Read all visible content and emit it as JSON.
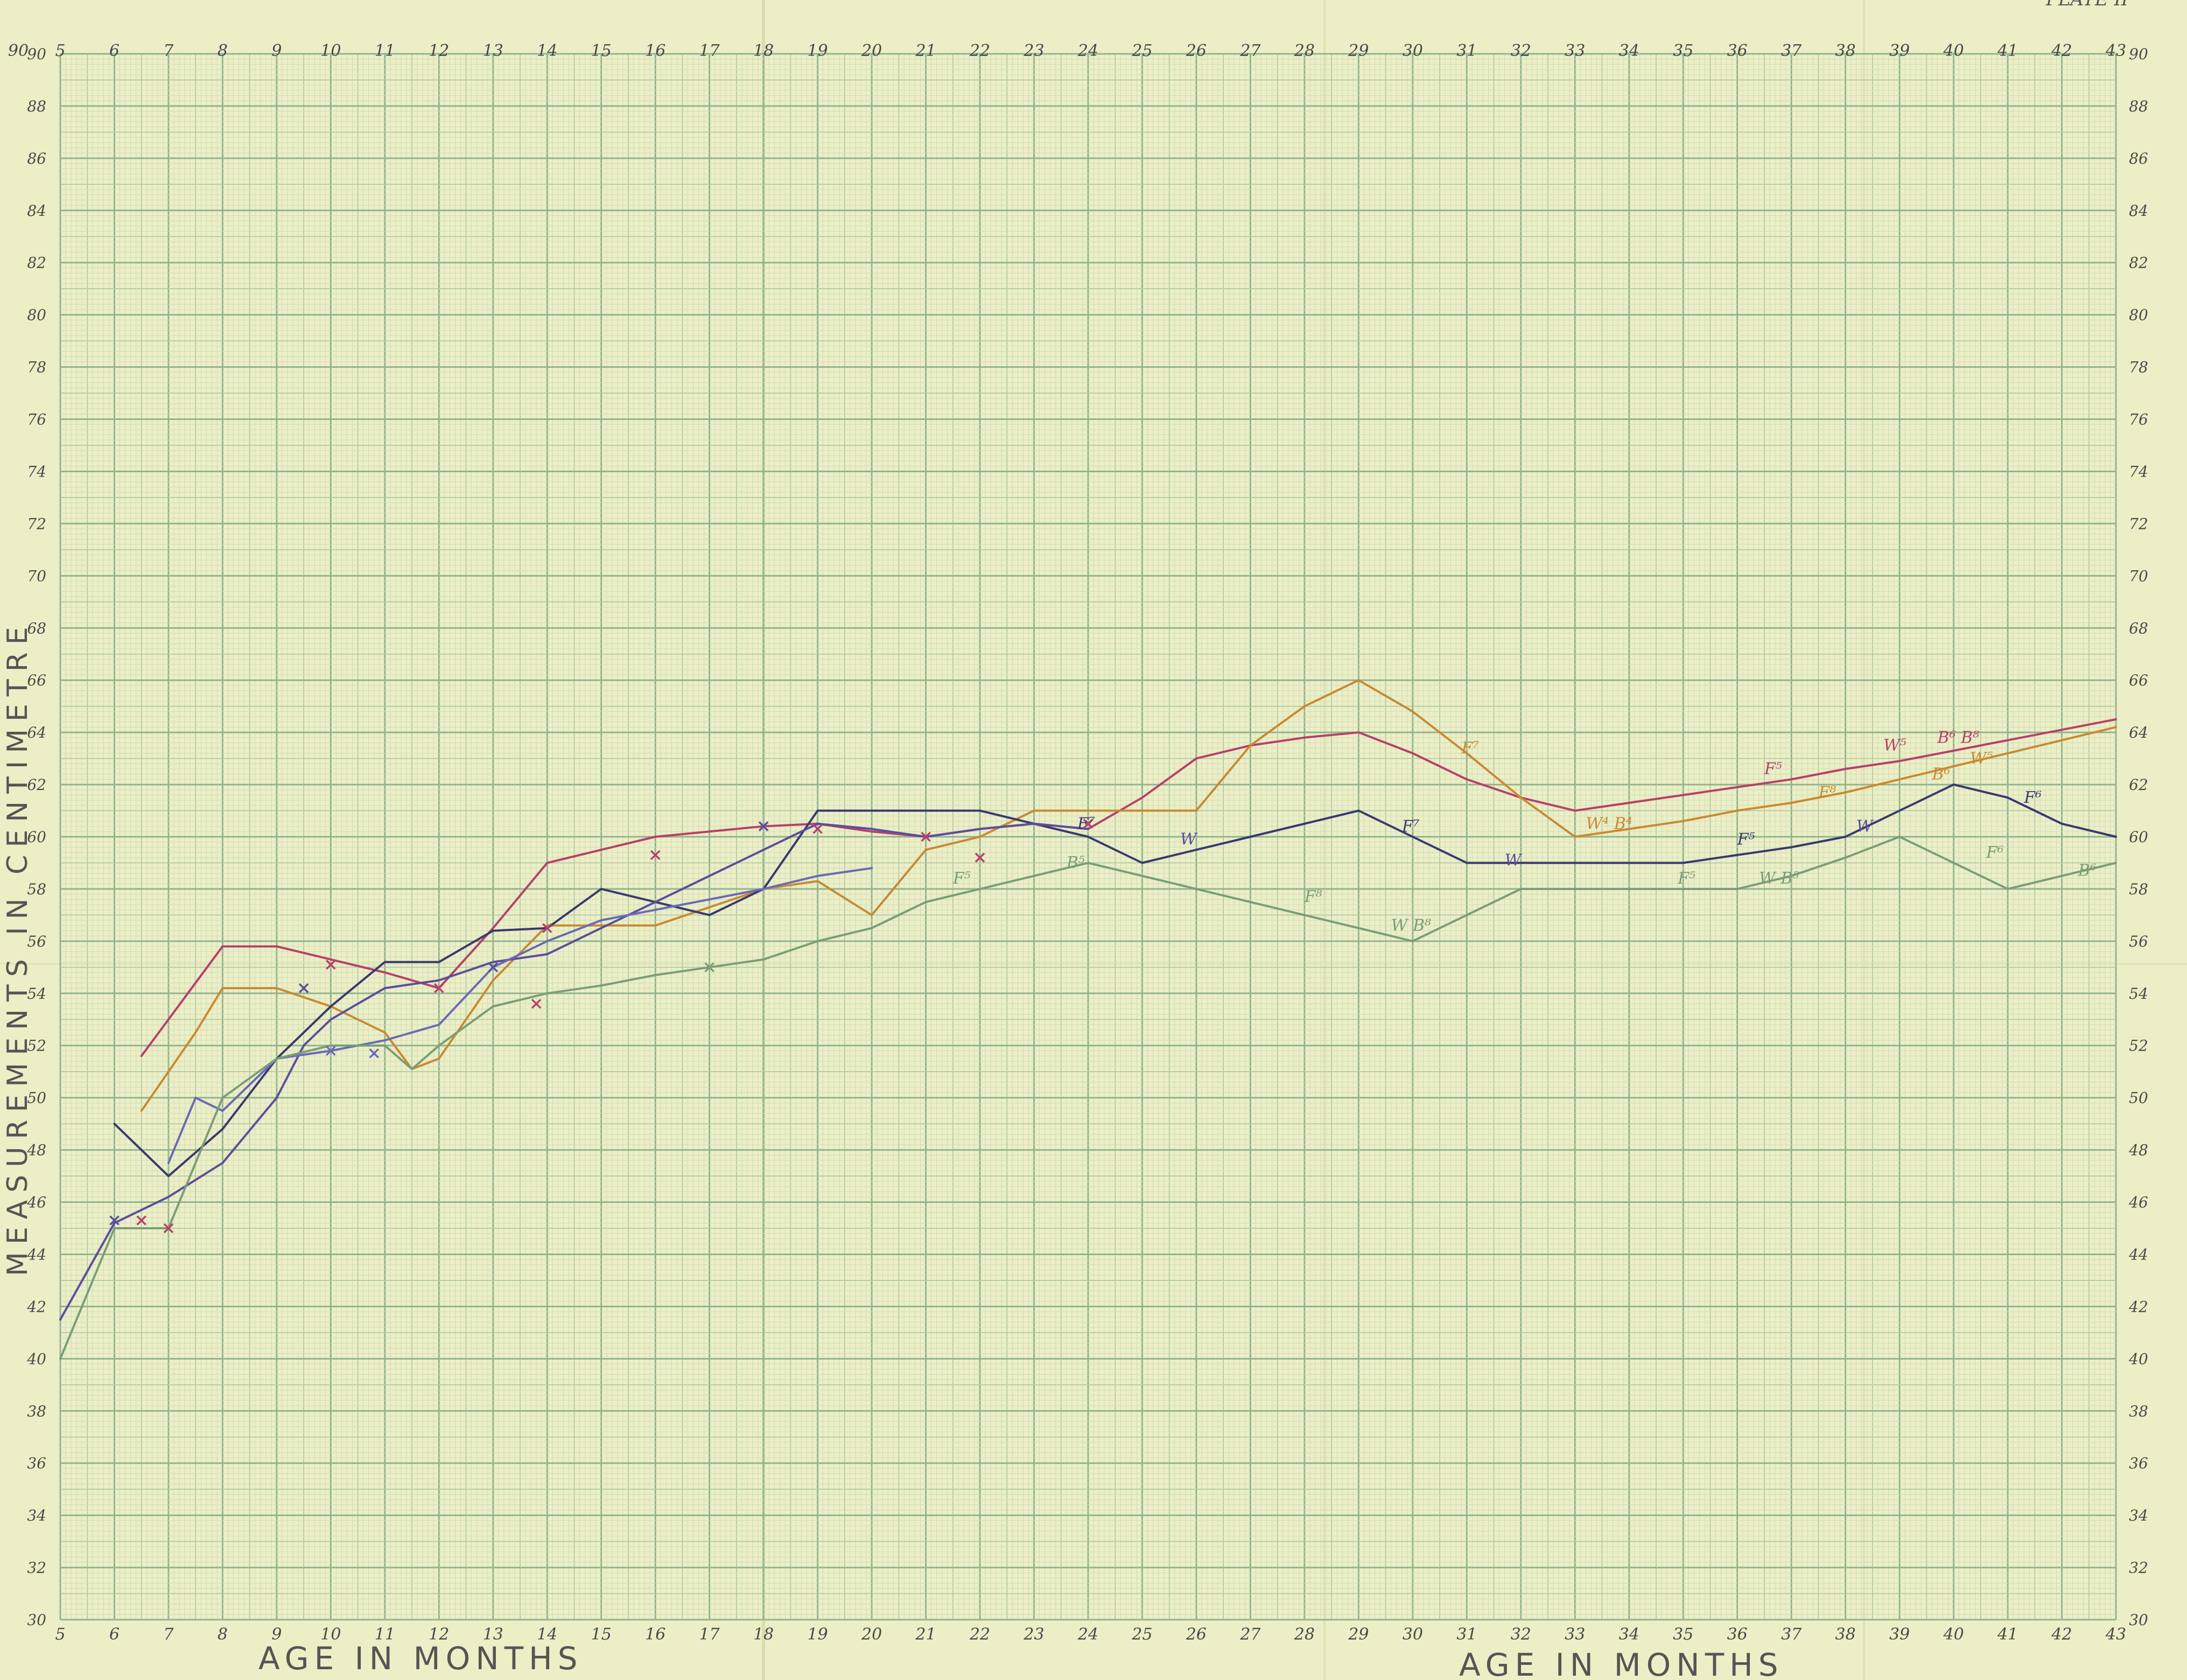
{
  "plate_label": "PLATE II",
  "chart_data": {
    "type": "line",
    "title": "",
    "xlabel": "AGE IN MONTHS",
    "ylabel": "MEASUREMENTS IN CENTIMETRE",
    "xlim": [
      5,
      43
    ],
    "ylim": [
      30,
      90
    ],
    "x_ticks_top": [
      5,
      6,
      7,
      8,
      9,
      10,
      11,
      12,
      13,
      14,
      15,
      16,
      17,
      18,
      19,
      20,
      21,
      22,
      23,
      24,
      25,
      26,
      27,
      28,
      29,
      30,
      31,
      32,
      33,
      34,
      35,
      36,
      37,
      38,
      39,
      40,
      41,
      42,
      43
    ],
    "x_ticks_bottom": [
      5,
      6,
      7,
      8,
      9,
      10,
      11,
      12,
      13,
      14,
      15,
      16,
      17,
      18,
      19,
      20,
      21,
      22,
      23,
      24,
      25,
      26,
      27,
      28,
      29,
      30,
      31,
      32,
      33,
      34,
      35,
      36,
      37,
      38,
      39,
      40,
      41,
      42,
      43
    ],
    "y_ticks": [
      30,
      32,
      34,
      36,
      38,
      40,
      42,
      44,
      46,
      48,
      50,
      52,
      54,
      56,
      58,
      60,
      62,
      64,
      66,
      68,
      70,
      72,
      74,
      76,
      78,
      80,
      82,
      84,
      86,
      88,
      90
    ],
    "grid": true,
    "legend": "none",
    "series": [
      {
        "name": "",
        "color": "#b8406a",
        "points": [
          [
            6.5,
            51.6
          ],
          [
            8,
            55.8
          ],
          [
            9,
            55.8
          ],
          [
            10,
            55.3
          ],
          [
            11,
            54.8
          ],
          [
            12,
            54.2
          ],
          [
            13,
            56.5
          ],
          [
            14,
            59
          ],
          [
            15,
            59.5
          ],
          [
            16,
            60
          ],
          [
            17,
            60.2
          ],
          [
            18,
            60.4
          ],
          [
            19,
            60.5
          ],
          [
            20,
            60.2
          ],
          [
            21,
            60
          ],
          [
            22,
            60.3
          ],
          [
            23,
            60.5
          ],
          [
            24,
            60.3
          ],
          [
            25,
            61.5
          ],
          [
            26,
            63
          ],
          [
            27,
            63.5
          ],
          [
            28,
            63.8
          ],
          [
            29,
            64
          ],
          [
            30,
            63.2
          ],
          [
            31,
            62.2
          ],
          [
            32,
            61.5
          ],
          [
            33,
            61
          ],
          [
            34,
            61.3
          ],
          [
            35,
            61.6
          ],
          [
            36,
            61.9
          ],
          [
            37,
            62.2
          ],
          [
            38,
            62.6
          ],
          [
            39,
            62.9
          ],
          [
            40,
            63.3
          ],
          [
            41,
            63.7
          ],
          [
            42,
            64.1
          ],
          [
            43,
            64.5
          ]
        ],
        "markers": [
          [
            6.5,
            45.3
          ],
          [
            7,
            45
          ],
          [
            10,
            55.1
          ],
          [
            12,
            54.2
          ],
          [
            13.8,
            53.6
          ],
          [
            14,
            56.5
          ],
          [
            16,
            59.3
          ],
          [
            19,
            60.3
          ],
          [
            21,
            60
          ],
          [
            22,
            59.2
          ],
          [
            24,
            60.5
          ]
        ],
        "annotations": [
          {
            "text": "F⁵",
            "x": 36.5,
            "y": 62.4
          },
          {
            "text": "W⁵",
            "x": 38.7,
            "y": 63.3
          },
          {
            "text": "B⁶ B⁸",
            "x": 39.7,
            "y": 63.6
          }
        ]
      },
      {
        "name": "",
        "color": "#c98a32",
        "points": [
          [
            6.5,
            49.5
          ],
          [
            7.5,
            52.5
          ],
          [
            8,
            54.2
          ],
          [
            9,
            54.2
          ],
          [
            10,
            53.5
          ],
          [
            11,
            52.5
          ],
          [
            11.5,
            51.1
          ],
          [
            12,
            51.5
          ],
          [
            13,
            54.5
          ],
          [
            14,
            56.6
          ],
          [
            15,
            56.6
          ],
          [
            16,
            56.6
          ],
          [
            17,
            57.3
          ],
          [
            18,
            58
          ],
          [
            19,
            58.3
          ],
          [
            20,
            57
          ],
          [
            21,
            59.5
          ],
          [
            22,
            60
          ],
          [
            23,
            61
          ],
          [
            24,
            61
          ],
          [
            25,
            61
          ],
          [
            26,
            61
          ],
          [
            27,
            63.5
          ],
          [
            28,
            65
          ],
          [
            29,
            66
          ],
          [
            30,
            64.8
          ],
          [
            31,
            63.2
          ],
          [
            32,
            61.5
          ],
          [
            33,
            60
          ],
          [
            34,
            60.3
          ],
          [
            35,
            60.6
          ],
          [
            36,
            61
          ],
          [
            37,
            61.3
          ],
          [
            38,
            61.7
          ],
          [
            39,
            62.2
          ],
          [
            40,
            62.7
          ],
          [
            41,
            63.2
          ],
          [
            42,
            63.7
          ],
          [
            43,
            64.2
          ]
        ],
        "markers": [],
        "annotations": [
          {
            "text": "F⁷",
            "x": 30.9,
            "y": 63.2
          },
          {
            "text": "W⁴ B⁴",
            "x": 33.2,
            "y": 60.3
          },
          {
            "text": "F⁸",
            "x": 37.5,
            "y": 61.5
          },
          {
            "text": "B⁶",
            "x": 39.6,
            "y": 62.2
          },
          {
            "text": "W⁵",
            "x": 40.3,
            "y": 62.8
          }
        ]
      },
      {
        "name": "",
        "color": "#3a3870",
        "points": [
          [
            6,
            49
          ],
          [
            7,
            47
          ],
          [
            8,
            48.8
          ],
          [
            9,
            51.5
          ],
          [
            10,
            53.5
          ],
          [
            11,
            55.2
          ],
          [
            12,
            55.2
          ],
          [
            13,
            56.4
          ],
          [
            14,
            56.5
          ],
          [
            15,
            58
          ],
          [
            16,
            57.5
          ],
          [
            17,
            57
          ],
          [
            18,
            58
          ],
          [
            19,
            61
          ],
          [
            20,
            61
          ],
          [
            21,
            61
          ],
          [
            22,
            61
          ],
          [
            23,
            60.5
          ],
          [
            24,
            60
          ],
          [
            25,
            59
          ],
          [
            26,
            59.5
          ],
          [
            27,
            60
          ],
          [
            28,
            60.5
          ],
          [
            29,
            61
          ],
          [
            30,
            60
          ],
          [
            31,
            59
          ],
          [
            32,
            59
          ],
          [
            33,
            59
          ],
          [
            34,
            59
          ],
          [
            35,
            59
          ],
          [
            36,
            59.3
          ],
          [
            37,
            59.6
          ],
          [
            38,
            60
          ],
          [
            39,
            61
          ],
          [
            40,
            62
          ],
          [
            41,
            61.5
          ],
          [
            42,
            60.5
          ],
          [
            43,
            60
          ]
        ],
        "markers": [],
        "annotations": [
          {
            "text": "F⁷",
            "x": 23.8,
            "y": 60.3
          },
          {
            "text": "F⁷",
            "x": 29.8,
            "y": 60.2
          },
          {
            "text": "F⁵",
            "x": 36,
            "y": 59.7
          },
          {
            "text": "F⁶",
            "x": 41.3,
            "y": 61.3
          }
        ]
      },
      {
        "name": "",
        "color": "#5c4e9e",
        "points": [
          [
            5,
            41.5
          ],
          [
            6,
            45.2
          ],
          [
            7,
            46.2
          ],
          [
            8,
            47.5
          ],
          [
            9,
            50
          ],
          [
            9.5,
            52
          ],
          [
            10,
            53
          ],
          [
            11,
            54.2
          ],
          [
            12,
            54.5
          ],
          [
            13,
            55.2
          ],
          [
            14,
            55.5
          ],
          [
            15,
            56.5
          ],
          [
            16,
            57.5
          ],
          [
            17,
            58.5
          ],
          [
            18,
            59.5
          ],
          [
            19,
            60.5
          ],
          [
            20,
            60.3
          ],
          [
            21,
            60
          ],
          [
            22,
            60.3
          ],
          [
            23,
            60.5
          ],
          [
            24,
            60.3
          ]
        ],
        "markers": [
          [
            6,
            45.3
          ],
          [
            9.5,
            54.2
          ],
          [
            13,
            55
          ],
          [
            18,
            60.4
          ]
        ],
        "annotations": [
          {
            "text": "W",
            "x": 25.7,
            "y": 59.7
          },
          {
            "text": "W",
            "x": 31.7,
            "y": 58.9
          },
          {
            "text": "W",
            "x": 38.2,
            "y": 60.2
          }
        ]
      },
      {
        "name": "",
        "color": "#6a6ab8",
        "points": [
          [
            7,
            47.5
          ],
          [
            7.5,
            50
          ],
          [
            8,
            49.5
          ],
          [
            9,
            51.5
          ],
          [
            10,
            51.8
          ],
          [
            11,
            52.2
          ],
          [
            12,
            52.8
          ],
          [
            13,
            55
          ],
          [
            14,
            56
          ],
          [
            15,
            56.8
          ],
          [
            16,
            57.2
          ],
          [
            17,
            57.6
          ],
          [
            18,
            58
          ],
          [
            19,
            58.5
          ],
          [
            20,
            58.8
          ]
        ],
        "markers": [
          [
            10,
            51.8
          ],
          [
            10.8,
            51.7
          ]
        ],
        "annotations": []
      },
      {
        "name": "",
        "color": "#7a9e78",
        "points": [
          [
            5,
            40
          ],
          [
            6,
            45
          ],
          [
            7,
            45
          ],
          [
            8,
            50
          ],
          [
            9,
            51.5
          ],
          [
            10,
            52
          ],
          [
            11,
            52
          ],
          [
            11.5,
            51.1
          ],
          [
            12,
            52
          ],
          [
            13,
            53.5
          ],
          [
            14,
            54
          ],
          [
            15,
            54.3
          ],
          [
            16,
            54.7
          ],
          [
            17,
            55
          ],
          [
            18,
            55.3
          ],
          [
            19,
            56
          ],
          [
            20,
            56.5
          ],
          [
            21,
            57.5
          ],
          [
            22,
            58
          ],
          [
            23,
            58.5
          ],
          [
            24,
            59
          ],
          [
            25,
            58.5
          ],
          [
            26,
            58
          ],
          [
            27,
            57.5
          ],
          [
            28,
            57
          ],
          [
            29,
            56.5
          ],
          [
            30,
            56
          ],
          [
            31,
            57
          ],
          [
            32,
            58
          ],
          [
            33,
            58
          ],
          [
            34,
            58
          ],
          [
            35,
            58
          ],
          [
            36,
            58
          ],
          [
            37,
            58.5
          ],
          [
            38,
            59.2
          ],
          [
            39,
            60
          ],
          [
            40,
            59
          ],
          [
            41,
            58
          ],
          [
            42,
            58.5
          ],
          [
            43,
            59
          ]
        ],
        "markers": [
          [
            17,
            55
          ]
        ],
        "annotations": [
          {
            "text": "F⁵",
            "x": 21.5,
            "y": 58.2
          },
          {
            "text": "B⁵",
            "x": 23.6,
            "y": 58.8
          },
          {
            "text": "F⁸",
            "x": 28,
            "y": 57.5
          },
          {
            "text": "W B⁸",
            "x": 29.6,
            "y": 56.4
          },
          {
            "text": "F⁵",
            "x": 34.9,
            "y": 58.2
          },
          {
            "text": "W B⁵",
            "x": 36.4,
            "y": 58.2
          },
          {
            "text": "F⁶",
            "x": 40.6,
            "y": 59.2
          },
          {
            "text": "B⁶",
            "x": 42.3,
            "y": 58.5
          }
        ]
      }
    ]
  }
}
